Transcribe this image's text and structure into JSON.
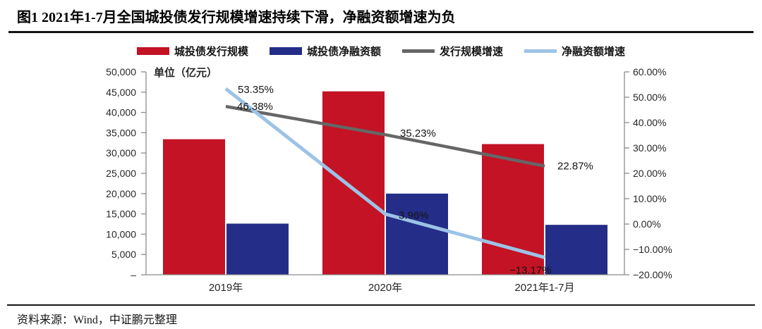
{
  "header": {
    "title": "图1 2021年1-7月全国城投债发行规模增速持续下滑，净融资额增速为负"
  },
  "footer": {
    "source": "资料来源：Wind，中证鹏元整理"
  },
  "legend": {
    "items": [
      {
        "label": "城投债发行规模",
        "color": "#c31325",
        "shape": "bar"
      },
      {
        "label": "城投债净融资额",
        "color": "#242d87",
        "shape": "bar"
      },
      {
        "label": "发行规模增速",
        "color": "#666666",
        "shape": "line"
      },
      {
        "label": "净融资额增速",
        "color": "#9cc3e6",
        "shape": "line"
      }
    ]
  },
  "plot": {
    "unit_label": "单位（亿元）"
  },
  "chart_data": {
    "type": "combo",
    "title": "图1 2021年1-7月全国城投债发行规模增速持续下滑，净融资额增速为负",
    "categories": [
      "2019年",
      "2020年",
      "2021年1-7月"
    ],
    "series": [
      {
        "name": "城投债发行规模",
        "type": "bar",
        "axis": "left",
        "color": "#c31325",
        "values": [
          33400,
          45200,
          32200
        ]
      },
      {
        "name": "城投债净融资额",
        "type": "bar",
        "axis": "left",
        "color": "#242d87",
        "values": [
          12600,
          20000,
          12300
        ]
      },
      {
        "name": "发行规模增速",
        "type": "line",
        "axis": "right",
        "color": "#666666",
        "values": [
          46.38,
          35.23,
          22.87
        ],
        "point_labels": [
          "46.38%",
          "35.23%",
          "22.87%"
        ]
      },
      {
        "name": "净融资额增速",
        "type": "line",
        "axis": "right",
        "color": "#9cc3e6",
        "values": [
          53.35,
          3.96,
          -13.17
        ],
        "point_labels": [
          "53.35%",
          "3.96%",
          "−13.17%"
        ]
      }
    ],
    "left_axis": {
      "unit": "单位（亿元）",
      "min": 0,
      "max": 50000,
      "step": 5000,
      "tick_labels_top_to_bottom": [
        "50,000",
        "45,000",
        "40,000",
        "35,000",
        "30,000",
        "25,000",
        "20,000",
        "15,000",
        "10,000",
        "5,000",
        "–"
      ]
    },
    "right_axis": {
      "min": -20,
      "max": 60,
      "step": 10,
      "tick_labels_top_to_bottom": [
        "60.00%",
        "50.00%",
        "40.00%",
        "30.00%",
        "20.00%",
        "10.00%",
        "0.00%",
        "−10.00%",
        "−20.00%"
      ]
    },
    "legend_position": "top",
    "grid": false
  }
}
